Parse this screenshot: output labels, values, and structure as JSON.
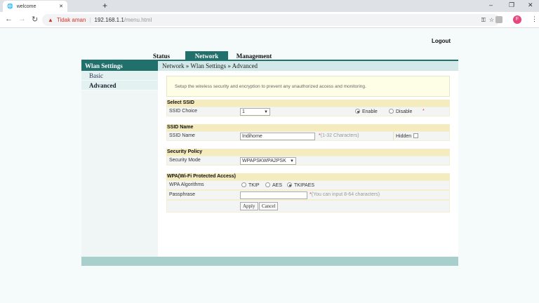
{
  "browser": {
    "tab_title": "welcome",
    "new_tab": "+",
    "security_label": "Tidak aman",
    "url_host": "192.168.1.1",
    "url_path": "/menu.html",
    "profile_initial": "F"
  },
  "header": {
    "logout": "Logout",
    "tabs": [
      {
        "label": "Status"
      },
      {
        "label": "Network",
        "active": true
      },
      {
        "label": "Management"
      }
    ]
  },
  "sidebar": {
    "title": "Wlan Settings",
    "items": [
      {
        "label": "Basic"
      },
      {
        "label": "Advanced",
        "active": true
      }
    ]
  },
  "breadcrumb": "Network » Wlan Settings » Advanced",
  "intro": "Setup the wireless security and encryption to prevent any unauthorized access and monitoring.",
  "select_ssid": {
    "title": "Select SSID",
    "label": "SSID Choice",
    "value": "1",
    "enable": "Enable",
    "disable": "Disable",
    "selected": "Enable",
    "required": "*"
  },
  "ssid_name": {
    "title": "SSID Name",
    "label": "SSID Name",
    "value": "Indihome",
    "hint": "(1-32 Characters)",
    "required": "*",
    "hidden_label": "Hidden",
    "hidden_checked": false
  },
  "security": {
    "title": "Security Policy",
    "label": "Security Mode",
    "value": "WPAPSKWPA2PSK"
  },
  "wpa": {
    "title": "WPA(Wi-Fi Protected Access)",
    "alg_label": "WPA Algorithms",
    "options": [
      "TKIP",
      "AES",
      "TKIPAES"
    ],
    "selected": "TKIPAES",
    "pass_label": "Passphrase",
    "pass_value": "",
    "pass_hint": "(You can input 8-64 characters)",
    "required": "*",
    "apply": "Apply",
    "cancel": "Cancel"
  },
  "colors": {
    "accent": "#22706b",
    "section": "#f4ecbe",
    "footer": "#a9cfcc"
  }
}
